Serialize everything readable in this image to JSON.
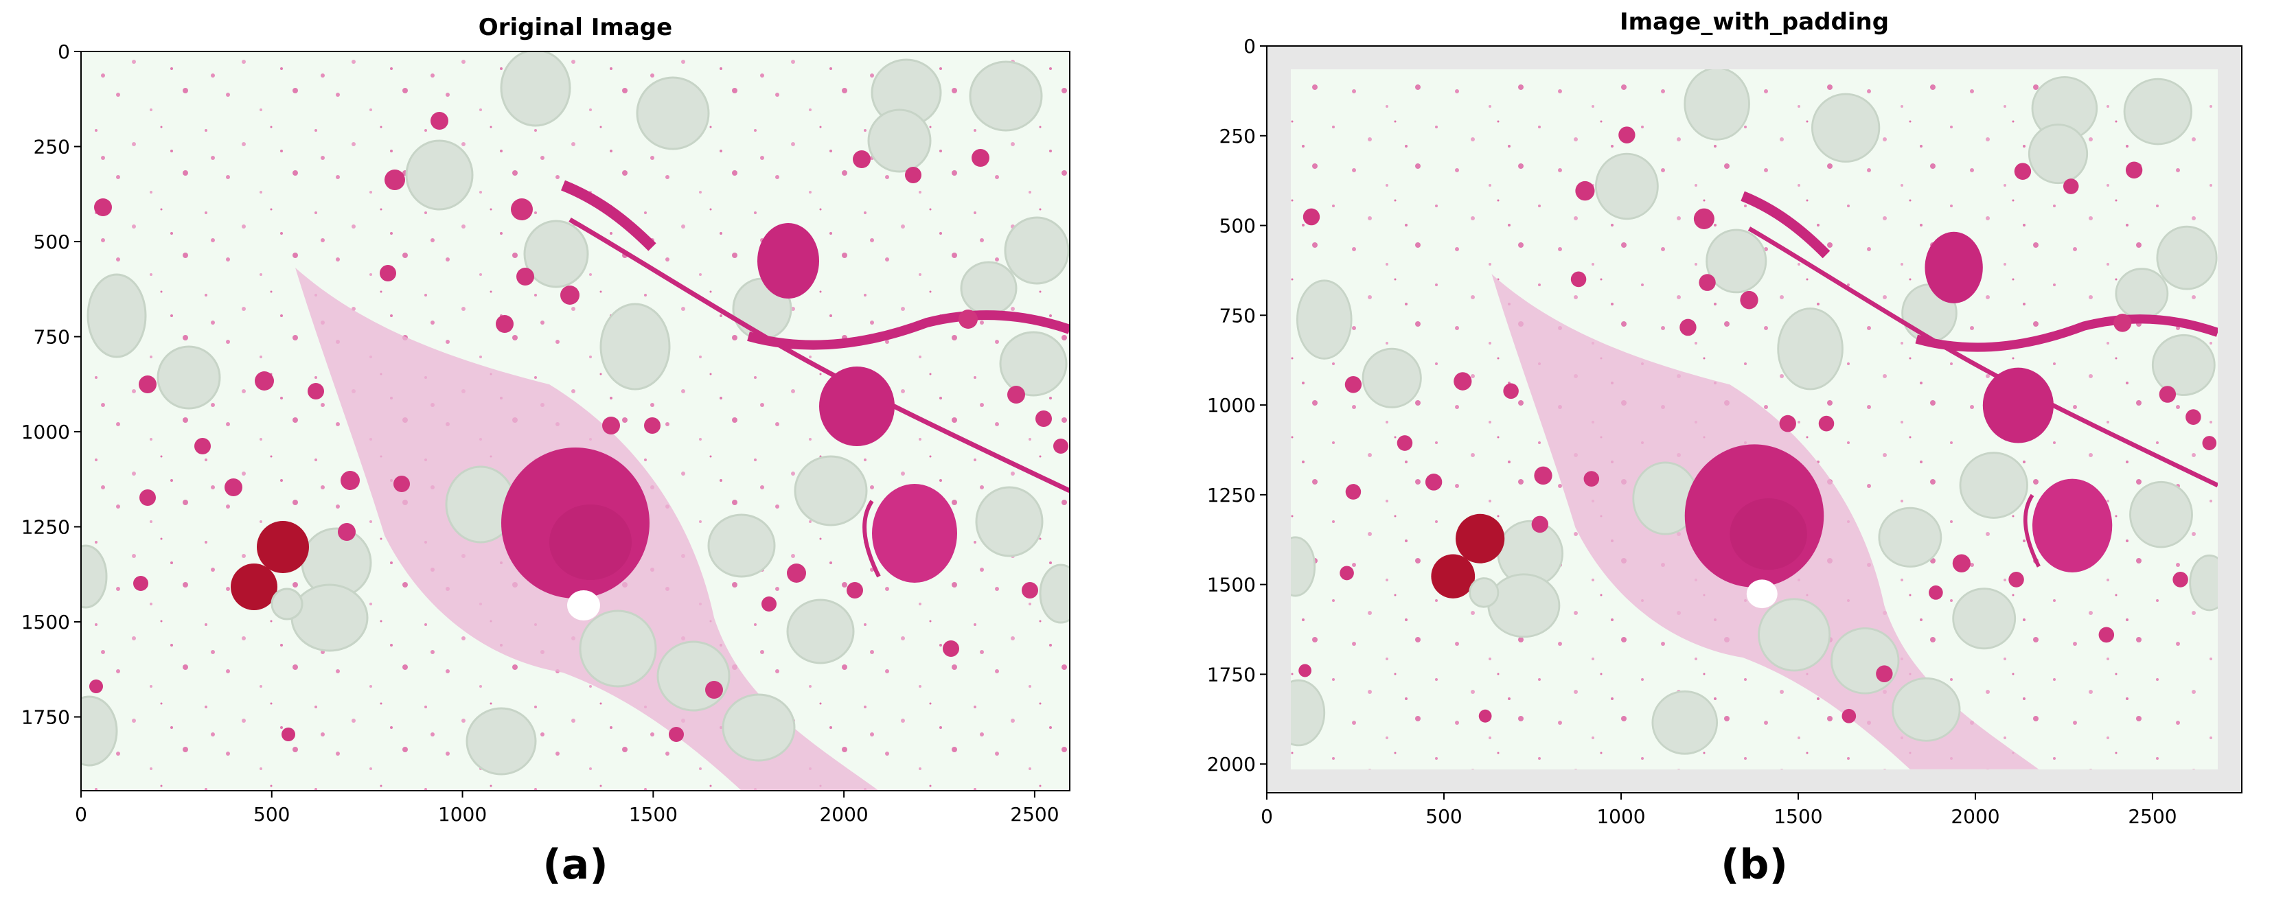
{
  "panels": [
    {
      "title": "Original Image",
      "label": "(a)",
      "x_ticks": [
        0,
        500,
        1000,
        1500,
        2000,
        2500
      ],
      "y_ticks": [
        0,
        250,
        500,
        750,
        1000,
        1250,
        1500,
        1750
      ],
      "x_range": [
        0,
        2592
      ],
      "y_range": [
        1944,
        0
      ]
    },
    {
      "title": "Image_with_padding",
      "label": "(b)",
      "x_ticks": [
        0,
        500,
        1000,
        1500,
        2000,
        2500
      ],
      "y_ticks": [
        0,
        250,
        500,
        750,
        1000,
        1250,
        1500,
        1750,
        2000
      ],
      "x_range": [
        0,
        2752
      ],
      "y_range": [
        2080,
        0
      ]
    }
  ],
  "colors": {
    "background": "#f2faf2",
    "cell_pink": "#e0569f",
    "nucleus_magenta": "#c8287d",
    "rbc_gray": "#d9e2d9",
    "dark_red": "#b1122e",
    "padding_gray": "#e7e7e7"
  }
}
